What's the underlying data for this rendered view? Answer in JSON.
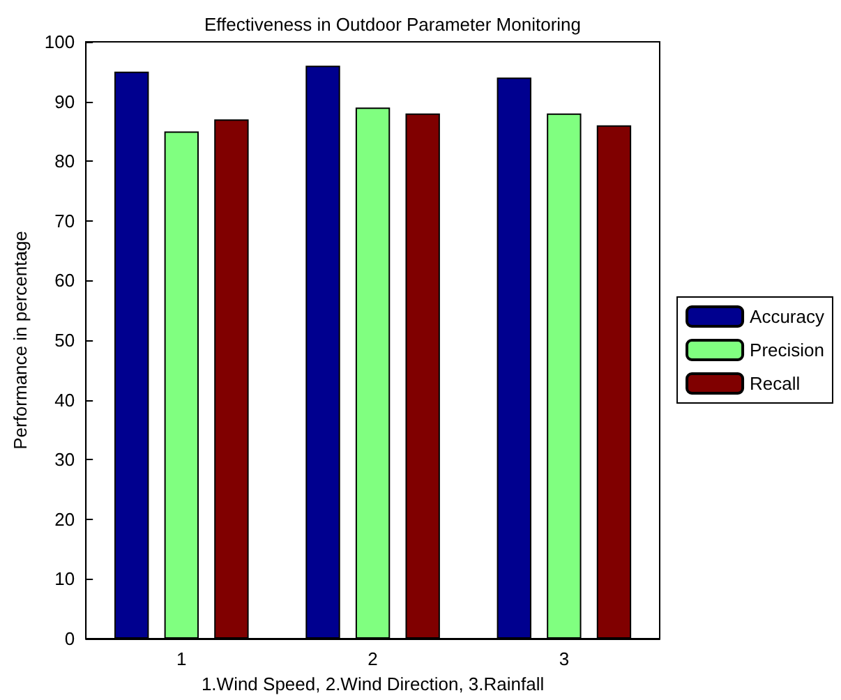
{
  "chart_data": {
    "type": "bar",
    "title": "Effectiveness in Outdoor Parameter Monitoring",
    "xlabel": "1.Wind Speed, 2.Wind Direction, 3.Rainfall",
    "ylabel": "Performance in percentage",
    "categories": [
      "1",
      "2",
      "3"
    ],
    "series": [
      {
        "name": "Accuracy",
        "color": "#00008f",
        "values": [
          95,
          96,
          94
        ]
      },
      {
        "name": "Precision",
        "color": "#80ff80",
        "values": [
          85,
          89,
          88
        ]
      },
      {
        "name": "Recall",
        "color": "#800000",
        "values": [
          87,
          88,
          86
        ]
      }
    ],
    "ylim": [
      0,
      100
    ],
    "yticks": [
      0,
      10,
      20,
      30,
      40,
      50,
      60,
      70,
      80,
      90,
      100
    ],
    "grid": false,
    "legend": "right"
  }
}
